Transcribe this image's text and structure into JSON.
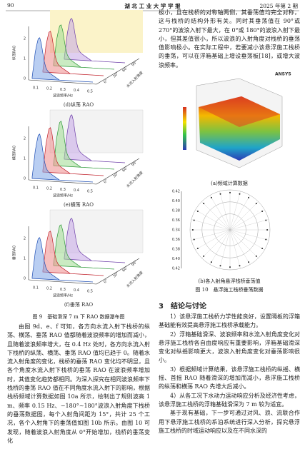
{
  "header": {
    "page": "90",
    "journal": "湖 北 工 业 大 学 学 报",
    "issue": "2025 年第 2 期"
  },
  "figure9": {
    "panels": [
      {
        "y_label": "纵荡RAO",
        "y_ticks": [
          "0",
          "1",
          "2"
        ],
        "x_ticks": [
          "0.1",
          "0.2",
          "0.3",
          "0.4",
          "0.5"
        ],
        "x_label": "波浪频率/Hz",
        "z_ticks": [
          "0°",
          "30°",
          "60°",
          "90°"
        ],
        "z_label": "水流入射角度",
        "caption": "(d)纵荡 RAO"
      },
      {
        "y_label": "横荡RAO",
        "y_ticks": [
          "0",
          "1",
          "2"
        ],
        "x_ticks": [
          "0.1",
          "0.2",
          "0.3",
          "0.4",
          "0.5"
        ],
        "x_label": "波浪频率/Hz",
        "z_ticks": [
          "0°",
          "30°",
          "60°",
          "90°"
        ],
        "z_label": "水流入射角度",
        "caption": "(e)横荡 RAO"
      },
      {
        "y_label": "垂荡RAO",
        "y_ticks": [
          "0",
          "1",
          "2"
        ],
        "x_ticks": [
          "0.1",
          "0.2",
          "0.3",
          "0.4",
          "0.5"
        ],
        "x_label": "波浪频率/Hz",
        "z_ticks": [
          "0°",
          "30°",
          "60°",
          "90°"
        ],
        "z_label": "水流入射角度",
        "caption": "(f)垂荡 RAO"
      }
    ],
    "caption": "图 9　基础滑深 7 m 下 RAO 数据瀑布图"
  },
  "left_paragraph": "由图 9d、e、f 可知，各方向水流入射下栈桥的纵荡、横荡、垂荡 RAO 值都随着波浪频率的增加而减小，且随着波浪频率增大，在 0.4 Hz 处时，各方向水流入射下栈桥的纵荡、横荡、垂荡 RAO 值均已趋于 0。随着水流入射角度的变化，栈桥的垂荡 RAO 变化均不明显，且各个角度水流入射下栈桥的垂荡 RAO 在波浪频率增加时，其值变化趋势都相同。为深入探究在相同波浪频率下栈桥的垂荡 RAO 值在不同角度水流入射下的影响，根据栈桥频域计算数据如图 10a 所示，绘制出了规则波高 1 m、频率 0.15 Hz、−180°~180°波浪入射角度下栈桥的垂荡数据图，每个入射角间距为 15°，共计 25 个工况，各个入射角下的垂荡值如图 10b 所示。由图 10 可发现，随着波浪入射角度从 0°开始增加，栈桥的垂荡变化",
  "right_paragraph": "极小，且在栈桥的对称轴两侧，其垂荡值均完全对称，这与栈桥的结构外形有关。同时其垂荡值在 90°或 270°的波浪入射下最大，在 0°或 180°的波浪入射下最小，但其差值很小，所以波浪的入射角度对栈桥的垂荡值影响极小。在实际工程中，若要减小该悬浮施工栈桥的垂荡，可以在浮箱基础上增设垂荡板[18]，或增大波浪频率。",
  "figure10": {
    "logo": "ANSYS",
    "caption_a": "(a)频域计算数据",
    "polar_ticks": [
      "0.42",
      "0.40",
      "0.38",
      "0.36",
      "0.34",
      "0.36",
      "0.38",
      "0.40",
      "0.42"
    ],
    "caption_b": "(b)各入射角悬浮栈桥垂荡值",
    "caption": "图 10　悬浮施工栈桥垂荡数据"
  },
  "section": "3　结论与讨论",
  "conclusions": [
    "1）该悬浮施工栈桥力学性能良好，设置隔板的浮箱基础能有效提高悬浮施工栈桥承载能力。",
    "2）浮箱基础滑深、波浪频率和水流入射角度变化对悬浮施工栈桥各自由度响应有重要影响，浮箱基础滑深变化对纵摇影响更大，波浪入射角度变化对垂荡影响很小。",
    "3）根据频域计算结果，该悬浮施工栈桥的纵摇、横摇、首摇 RAO 随着滑深的增加而减小，悬浮施工栈桥的纵荡和横荡 RAO 先增大后减小。",
    "4）从各工况下水动力运动响应分析及经济性考虑，该悬浮施工栈桥的浮箱基础滑深为 7 m 较为适宜。"
  ],
  "closing": "基于现有基础，下一步可通过对风、浪、流联合作用下悬浮施工栈桥的系泊系统进行深入分析，探究悬浮施工栈桥的时域运动响应以及在不同水深的"
}
